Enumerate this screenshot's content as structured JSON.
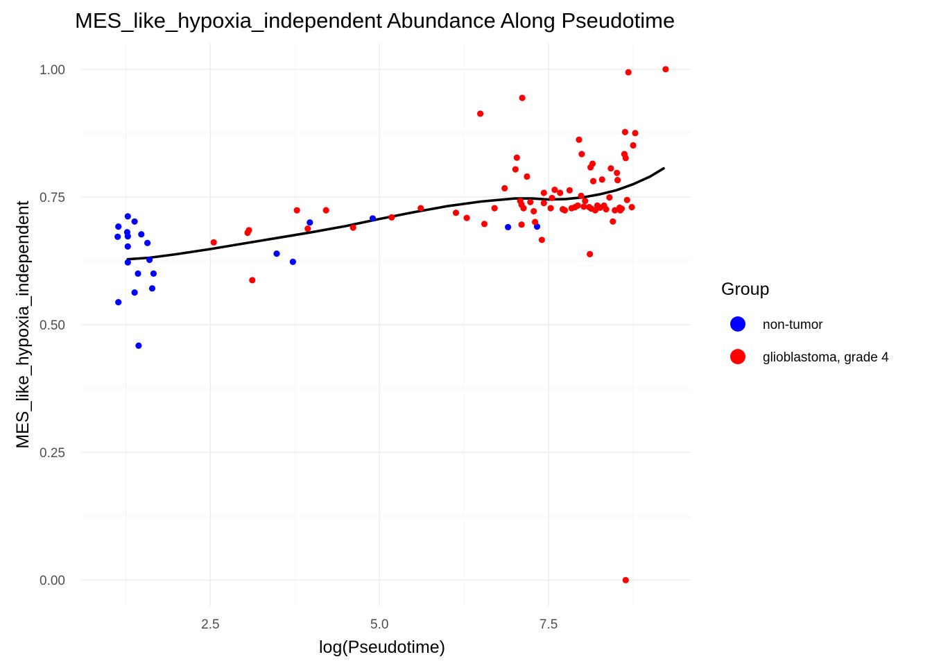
{
  "chart_data": {
    "type": "scatter",
    "title": "MES_like_hypoxia_independent Abundance Along Pseudotime",
    "xlabel": "log(Pseudotime)",
    "ylabel": "MES_like_hypoxia_independent",
    "xlim": [
      0.6,
      9.6
    ],
    "ylim": [
      -0.05,
      1.05
    ],
    "x_ticks": [
      2.5,
      5.0,
      7.5
    ],
    "x_tick_labels": [
      "2.5",
      "5.0",
      "7.5"
    ],
    "y_ticks": [
      0.0,
      0.25,
      0.5,
      0.75,
      1.0
    ],
    "y_tick_labels": [
      "0.00",
      "0.25",
      "0.50",
      "0.75",
      "1.00"
    ],
    "grid": true,
    "legend": {
      "title": "Group",
      "position": "right",
      "entries": [
        {
          "label": "non-tumor",
          "color": "#0000ff"
        },
        {
          "label": "glioblastoma, grade 4",
          "color": "#ff0000"
        }
      ]
    },
    "series": [
      {
        "name": "non-tumor",
        "color": "#0000ff",
        "points": [
          [
            1.13,
            0.672
          ],
          [
            1.14,
            0.692
          ],
          [
            1.14,
            0.544
          ],
          [
            1.27,
            0.681
          ],
          [
            1.28,
            0.712
          ],
          [
            1.28,
            0.673
          ],
          [
            1.28,
            0.653
          ],
          [
            1.28,
            0.622
          ],
          [
            1.38,
            0.702
          ],
          [
            1.38,
            0.563
          ],
          [
            1.43,
            0.6
          ],
          [
            1.44,
            0.459
          ],
          [
            1.48,
            0.677
          ],
          [
            1.57,
            0.66
          ],
          [
            1.6,
            0.627
          ],
          [
            1.64,
            0.571
          ],
          [
            1.66,
            0.6
          ],
          [
            3.48,
            0.639
          ],
          [
            3.72,
            0.623
          ],
          [
            3.97,
            0.7
          ],
          [
            4.9,
            0.708
          ],
          [
            6.9,
            0.691
          ],
          [
            7.33,
            0.692
          ]
        ]
      },
      {
        "name": "glioblastoma, grade 4",
        "color": "#ff0000",
        "points": [
          [
            2.55,
            0.661
          ],
          [
            3.05,
            0.68
          ],
          [
            3.07,
            0.685
          ],
          [
            3.12,
            0.587
          ],
          [
            3.78,
            0.724
          ],
          [
            3.94,
            0.688
          ],
          [
            4.21,
            0.724
          ],
          [
            4.61,
            0.69
          ],
          [
            5.18,
            0.71
          ],
          [
            5.61,
            0.728
          ],
          [
            6.13,
            0.719
          ],
          [
            6.29,
            0.709
          ],
          [
            6.49,
            0.913
          ],
          [
            6.55,
            0.697
          ],
          [
            6.7,
            0.728
          ],
          [
            6.85,
            0.767
          ],
          [
            7.01,
            0.804
          ],
          [
            7.03,
            0.827
          ],
          [
            7.08,
            0.742
          ],
          [
            7.1,
            0.696
          ],
          [
            7.1,
            0.735
          ],
          [
            7.11,
            0.944
          ],
          [
            7.13,
            0.728
          ],
          [
            7.18,
            0.79
          ],
          [
            7.23,
            0.74
          ],
          [
            7.28,
            0.722
          ],
          [
            7.3,
            0.701
          ],
          [
            7.4,
            0.666
          ],
          [
            7.43,
            0.758
          ],
          [
            7.43,
            0.738
          ],
          [
            7.53,
            0.728
          ],
          [
            7.55,
            0.748
          ],
          [
            7.59,
            0.764
          ],
          [
            7.67,
            0.758
          ],
          [
            7.71,
            0.726
          ],
          [
            7.74,
            0.724
          ],
          [
            7.81,
            0.763
          ],
          [
            7.84,
            0.728
          ],
          [
            7.89,
            0.73
          ],
          [
            7.93,
            0.733
          ],
          [
            7.95,
            0.862
          ],
          [
            7.98,
            0.752
          ],
          [
            7.99,
            0.834
          ],
          [
            8.02,
            0.731
          ],
          [
            8.04,
            0.742
          ],
          [
            8.1,
            0.73
          ],
          [
            8.11,
            0.638
          ],
          [
            8.12,
            0.808
          ],
          [
            8.13,
            0.727
          ],
          [
            8.15,
            0.815
          ],
          [
            8.16,
            0.781
          ],
          [
            8.19,
            0.724
          ],
          [
            8.22,
            0.733
          ],
          [
            8.26,
            0.729
          ],
          [
            8.29,
            0.784
          ],
          [
            8.32,
            0.733
          ],
          [
            8.35,
            0.726
          ],
          [
            8.4,
            0.749
          ],
          [
            8.42,
            0.806
          ],
          [
            8.45,
            0.702
          ],
          [
            8.48,
            0.724
          ],
          [
            8.51,
            0.797
          ],
          [
            8.52,
            0.783
          ],
          [
            8.55,
            0.729
          ],
          [
            8.56,
            0.724
          ],
          [
            8.58,
            0.727
          ],
          [
            8.62,
            0.834
          ],
          [
            8.63,
            0.877
          ],
          [
            8.64,
            0.826
          ],
          [
            8.64,
            0.0
          ],
          [
            8.66,
            0.744
          ],
          [
            8.68,
            0.994
          ],
          [
            8.73,
            0.73
          ],
          [
            8.75,
            0.851
          ],
          [
            8.78,
            0.875
          ],
          [
            9.23,
            1.0
          ]
        ]
      }
    ],
    "trend_line": {
      "color": "#000000",
      "points": [
        [
          1.28,
          0.628
        ],
        [
          1.6,
          0.631
        ],
        [
          2.0,
          0.638
        ],
        [
          2.5,
          0.648
        ],
        [
          3.0,
          0.659
        ],
        [
          3.5,
          0.67
        ],
        [
          4.0,
          0.681
        ],
        [
          4.5,
          0.693
        ],
        [
          5.0,
          0.707
        ],
        [
          5.5,
          0.72
        ],
        [
          6.0,
          0.732
        ],
        [
          6.5,
          0.741
        ],
        [
          7.0,
          0.747
        ],
        [
          7.25,
          0.747
        ],
        [
          7.5,
          0.745
        ],
        [
          7.75,
          0.746
        ],
        [
          8.0,
          0.749
        ],
        [
          8.25,
          0.755
        ],
        [
          8.5,
          0.763
        ],
        [
          8.75,
          0.775
        ],
        [
          9.0,
          0.79
        ],
        [
          9.2,
          0.806
        ]
      ]
    }
  }
}
